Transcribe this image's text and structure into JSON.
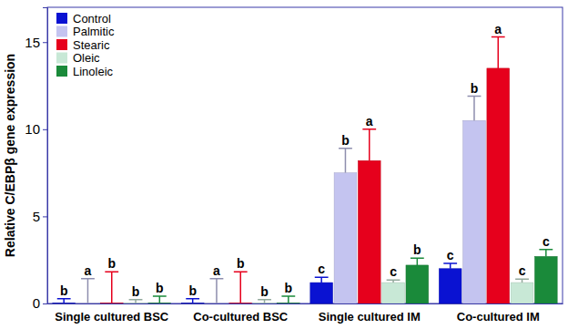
{
  "chart_data": {
    "type": "bar",
    "y_label": "Relative C/EBPβ gene expression",
    "categories": [
      "Single cultured BSC",
      "Co-cultured BSC",
      "Single cultured IM",
      "Co-cultured IM"
    ],
    "ylim": [
      0,
      17
    ],
    "yticks": [
      0,
      5,
      10,
      15
    ],
    "legend": "upper-left",
    "series": [
      {
        "name": "Control",
        "color": "#0a12d2",
        "values": [
          0.02,
          0.02,
          1.2,
          2.0
        ],
        "errors": [
          0.25,
          0.25,
          0.3,
          0.3
        ],
        "letters": [
          "b",
          "b",
          "c",
          "c"
        ]
      },
      {
        "name": "Palmitic",
        "color": "#c4c4f0",
        "values": [
          0.02,
          0.02,
          7.5,
          10.5
        ],
        "errors": [
          1.4,
          1.4,
          1.4,
          1.4
        ],
        "letters": [
          "a",
          "a",
          "b",
          "b"
        ]
      },
      {
        "name": "Stearic",
        "color": "#e6001c",
        "values": [
          0.02,
          0.02,
          8.2,
          13.5
        ],
        "errors": [
          1.8,
          1.8,
          1.8,
          1.8
        ],
        "letters": [
          "b",
          "b",
          "a",
          "a"
        ]
      },
      {
        "name": "Oleic",
        "color": "#c8e8d6",
        "values": [
          0.02,
          0.02,
          1.2,
          1.2
        ],
        "errors": [
          0.2,
          0.2,
          0.15,
          0.2
        ],
        "letters": [
          "b",
          "b",
          "c",
          "c"
        ]
      },
      {
        "name": "Linoleic",
        "color": "#1a8a3a",
        "values": [
          0.02,
          0.02,
          2.2,
          2.7
        ],
        "errors": [
          0.4,
          0.4,
          0.4,
          0.4
        ],
        "letters": [
          "b",
          "b",
          "b",
          "c"
        ]
      }
    ]
  }
}
